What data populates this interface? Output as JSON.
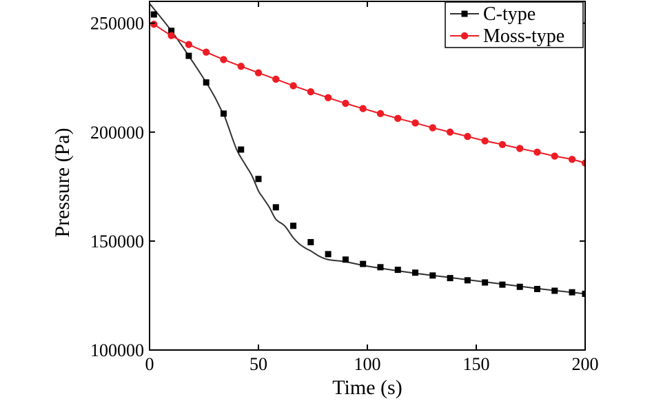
{
  "chart_data": {
    "type": "line",
    "xlabel": "Time (s)",
    "ylabel": "Pressure (Pa)",
    "xlim": [
      0,
      200
    ],
    "ylim": [
      100000,
      260000
    ],
    "x_ticks": [
      0,
      50,
      100,
      150,
      200
    ],
    "y_ticks": [
      100000,
      150000,
      200000,
      250000
    ],
    "x_tick_labels": [
      "0",
      "50",
      "100",
      "150",
      "200"
    ],
    "y_tick_labels": [
      "100000",
      "150000",
      "200000",
      "250000"
    ],
    "grid": false,
    "legend_position": "top-right",
    "series": [
      {
        "name": "C-type",
        "color": "#000000",
        "line_color": "#333333",
        "marker": "square",
        "x": [
          2,
          10,
          18,
          26,
          34,
          42,
          50,
          58,
          66,
          74,
          82,
          90,
          98,
          106,
          114,
          122,
          130,
          138,
          146,
          154,
          162,
          170,
          178,
          186,
          194,
          200
        ],
        "y": [
          254000,
          246500,
          235000,
          222800,
          208500,
          192000,
          178500,
          165500,
          157000,
          149500,
          144000,
          141500,
          139500,
          138000,
          136800,
          135500,
          134200,
          133000,
          132000,
          131000,
          130000,
          129000,
          128000,
          127200,
          126500,
          125800
        ],
        "curve_x": [
          0,
          10,
          18,
          26,
          30,
          33,
          34,
          36,
          40,
          44,
          47,
          50,
          52,
          55,
          58,
          62,
          66,
          69,
          72,
          74,
          78,
          82,
          90,
          100,
          120,
          140,
          160,
          180,
          200
        ],
        "curve_y": [
          259000,
          246500,
          235000,
          222800,
          216000,
          210000,
          208500,
          203000,
          192000,
          185000,
          180000,
          173000,
          170000,
          165500,
          160000,
          157000,
          151500,
          148500,
          146500,
          145500,
          143000,
          141500,
          140500,
          138500,
          135500,
          133000,
          130500,
          128000,
          125800
        ]
      },
      {
        "name": "Moss-type",
        "color": "#ee1c25",
        "line_color": "#ee1c25",
        "marker": "circle",
        "x": [
          2,
          10,
          18,
          26,
          34,
          42,
          50,
          58,
          66,
          74,
          82,
          90,
          98,
          106,
          114,
          122,
          130,
          138,
          146,
          154,
          162,
          170,
          178,
          186,
          194,
          200
        ],
        "y": [
          249500,
          244300,
          240200,
          236700,
          233300,
          230200,
          227200,
          224300,
          221300,
          218500,
          215800,
          213200,
          210800,
          208500,
          206300,
          204200,
          202000,
          200000,
          198000,
          196000,
          194300,
          192500,
          190800,
          189000,
          187500,
          185800
        ]
      }
    ]
  }
}
